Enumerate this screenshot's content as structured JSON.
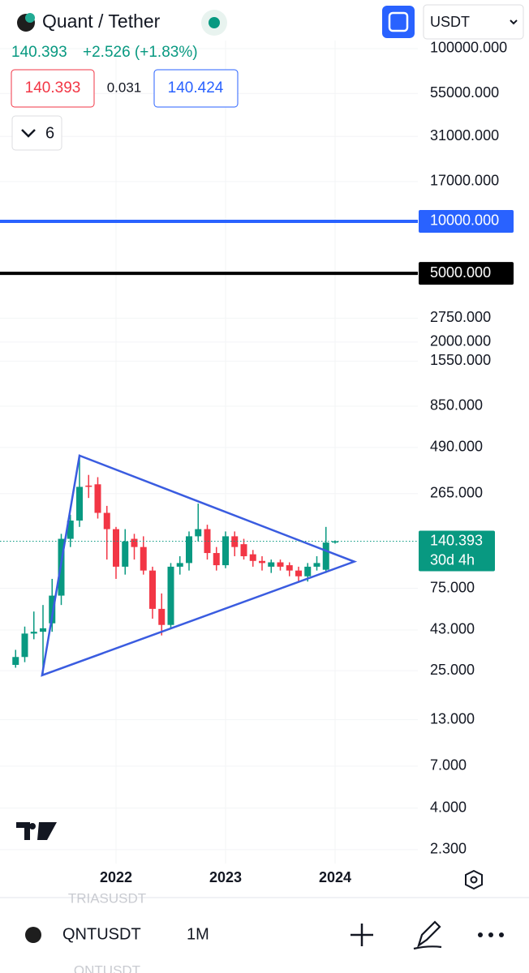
{
  "header": {
    "title": "Quant / Tether",
    "price": "140.393",
    "change": "+2.526 (+1.83%)",
    "bid": "140.393",
    "spread": "0.031",
    "ask": "140.424",
    "indicator_count": "6",
    "currency": "USDT"
  },
  "chart_data": {
    "type": "candlestick",
    "log_scale": true,
    "categories": [
      null,
      null,
      null,
      null,
      null,
      null,
      null,
      null,
      null,
      null,
      null,
      "2022",
      null,
      null,
      null,
      null,
      null,
      null,
      null,
      null,
      null,
      null,
      null,
      "2023",
      null,
      null,
      null,
      null,
      null,
      null,
      null,
      null,
      null,
      null,
      null,
      "2024"
    ],
    "open": [
      27,
      30,
      41,
      42,
      47,
      68,
      145,
      185,
      295,
      300,
      205,
      165,
      100,
      145,
      130,
      95,
      57,
      46,
      100,
      105,
      150,
      165,
      120,
      102,
      150,
      135,
      118,
      108,
      100,
      106,
      102,
      95,
      88,
      100,
      96,
      138
    ],
    "high": [
      33,
      45,
      55,
      60,
      85,
      155,
      200,
      440,
      340,
      330,
      225,
      170,
      165,
      155,
      150,
      100,
      70,
      105,
      115,
      160,
      232,
      175,
      130,
      160,
      160,
      145,
      125,
      115,
      110,
      110,
      106,
      100,
      105,
      115,
      170,
      142
    ],
    "low": [
      26,
      28,
      38,
      24,
      42,
      60,
      130,
      170,
      250,
      190,
      110,
      85,
      90,
      110,
      90,
      50,
      40,
      44,
      90,
      95,
      140,
      110,
      95,
      98,
      115,
      110,
      100,
      95,
      92,
      95,
      88,
      82,
      82,
      95,
      92,
      136
    ],
    "close": [
      30,
      41,
      42,
      44,
      68,
      145,
      185,
      290,
      290,
      205,
      165,
      100,
      140,
      130,
      95,
      57,
      46,
      100,
      105,
      150,
      165,
      120,
      102,
      150,
      130,
      115,
      108,
      105,
      106,
      100,
      95,
      88,
      100,
      105,
      138,
      140.393
    ],
    "up_color": "#089981",
    "down_color": "#f23645",
    "ylim": [
      1.91,
      111400
    ],
    "yticks": [
      {
        "value": 100000,
        "label": "100000.000"
      },
      {
        "value": 55000,
        "label": "55000.000"
      },
      {
        "value": 31000,
        "label": "31000.000"
      },
      {
        "value": 17000,
        "label": "17000.000"
      },
      {
        "value": 2750,
        "label": "2750.000"
      },
      {
        "value": 2000,
        "label": "2000.000"
      },
      {
        "value": 1550,
        "label": "1550.000"
      },
      {
        "value": 850,
        "label": "850.000"
      },
      {
        "value": 490,
        "label": "490.000"
      },
      {
        "value": 265,
        "label": "265.000"
      },
      {
        "value": 75,
        "label": "75.000"
      },
      {
        "value": 43,
        "label": "43.000"
      },
      {
        "value": 25,
        "label": "25.000"
      },
      {
        "value": 13,
        "label": "13.000"
      },
      {
        "value": 7,
        "label": "7.000"
      },
      {
        "value": 4,
        "label": "4.000"
      },
      {
        "value": 2.3,
        "label": "2.300"
      }
    ],
    "grid": true,
    "horizontal_lines": [
      {
        "value": 10000,
        "label": "10000.000",
        "color": "#2962ff"
      },
      {
        "value": 5000,
        "label": "5000.000",
        "color": "#000000"
      }
    ],
    "last_price": {
      "value": 140.393,
      "label": "140.393",
      "countdown": "30d 4h",
      "color": "#089981"
    },
    "trendlines": {
      "color": "#3a5ce0",
      "points": [
        {
          "x": 7,
          "y": 440
        },
        {
          "x": 37.1,
          "y": 107
        },
        {
          "x": 2.9,
          "y": 23.5
        }
      ]
    }
  },
  "footer": {
    "symbol": "QNTUSDT",
    "interval": "1M",
    "watchlist_prev": "TRIASUSDT",
    "watchlist_next": "QNTUSDT"
  }
}
